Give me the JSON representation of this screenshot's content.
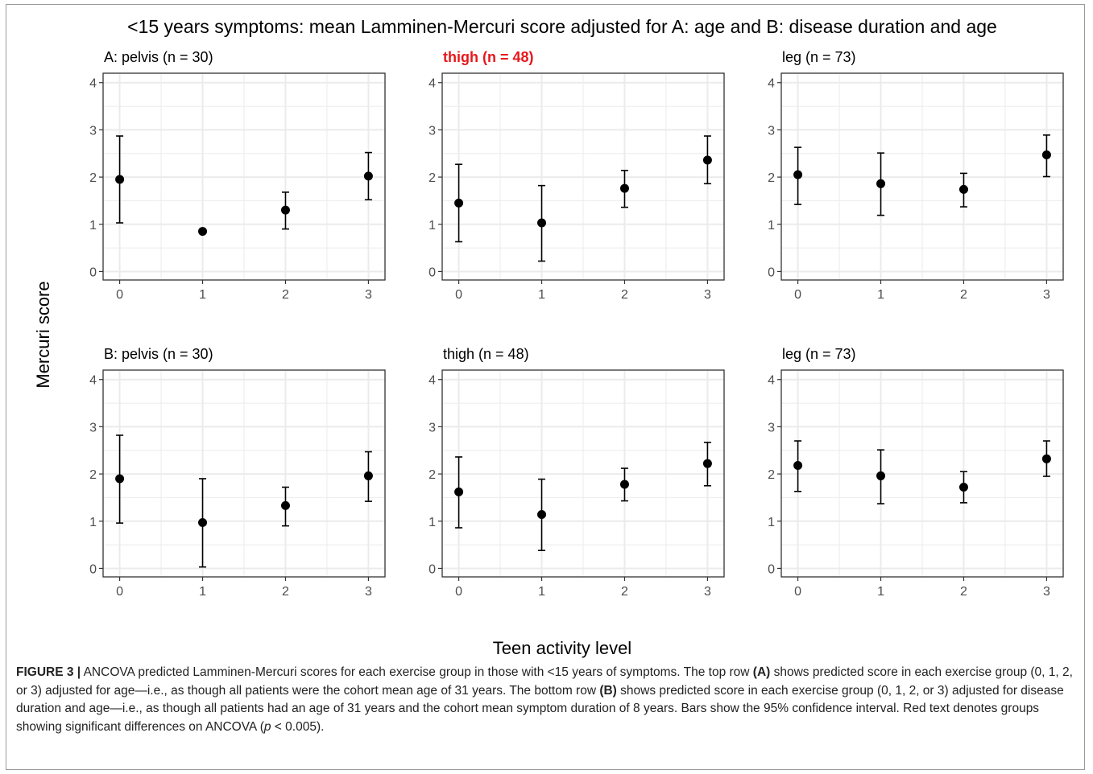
{
  "figure": {
    "title": "<15 years symptoms: mean Lamminen-Mercuri score adjusted for A: age and B: disease duration and age",
    "ylabel": "Mercuri score",
    "xlabel": "Teen activity level"
  },
  "caption": {
    "lead": "FIGURE 3 |",
    "part1": " ANCOVA predicted Lamminen-Mercuri scores for each exercise group in those with <15 years of symptoms. The top row ",
    "a": "(A)",
    "part2": " shows predicted score in each exercise group (0, 1, 2, or 3) adjusted for age—i.e., as though all patients were the cohort mean age of 31 years. The bottom row ",
    "b": "(B)",
    "part3": " shows predicted score in each exercise group (0, 1, 2, or 3) adjusted for disease duration and age—i.e., as though all patients had an age of 31 years and the cohort mean symptom duration of 8 years. Bars show the 95% confidence interval. Red text denotes groups showing significant differences on ANCOVA (",
    "p": "p",
    "part4": " < 0.005)."
  },
  "colors": {
    "significant": "#e8171b",
    "point": "#000000",
    "grid": "#ebebeb",
    "border": "#333333"
  },
  "chart_data": [
    {
      "type": "scatter",
      "title": "A: pelvis (n = 30)",
      "significant": false,
      "x": [
        0,
        1,
        2,
        3
      ],
      "y": [
        1.95,
        0.85,
        1.3,
        2.02
      ],
      "lower": [
        1.03,
        0.85,
        0.9,
        1.52
      ],
      "upper": [
        2.87,
        0.85,
        1.68,
        2.52
      ],
      "ylim": [
        0,
        4
      ],
      "yticks": [
        0,
        1,
        2,
        3,
        4
      ],
      "xticks": [
        "0",
        "1",
        "2",
        "3"
      ],
      "grid": true
    },
    {
      "type": "scatter",
      "title": "thigh (n = 48)",
      "significant": true,
      "x": [
        0,
        1,
        2,
        3
      ],
      "y": [
        1.45,
        1.03,
        1.76,
        2.36
      ],
      "lower": [
        0.63,
        0.22,
        1.36,
        1.86
      ],
      "upper": [
        2.27,
        1.82,
        2.14,
        2.87
      ],
      "ylim": [
        0,
        4
      ],
      "yticks": [
        0,
        1,
        2,
        3,
        4
      ],
      "xticks": [
        "0",
        "1",
        "2",
        "3"
      ],
      "grid": true
    },
    {
      "type": "scatter",
      "title": "leg (n = 73)",
      "significant": false,
      "x": [
        0,
        1,
        2,
        3
      ],
      "y": [
        2.05,
        1.86,
        1.74,
        2.47
      ],
      "lower": [
        1.42,
        1.19,
        1.37,
        2.01
      ],
      "upper": [
        2.63,
        2.51,
        2.08,
        2.89
      ],
      "ylim": [
        0,
        4
      ],
      "yticks": [
        0,
        1,
        2,
        3,
        4
      ],
      "xticks": [
        "0",
        "1",
        "2",
        "3"
      ],
      "grid": true
    },
    {
      "type": "scatter",
      "title": "B: pelvis (n = 30)",
      "significant": false,
      "x": [
        0,
        1,
        2,
        3
      ],
      "y": [
        1.9,
        0.97,
        1.33,
        1.96
      ],
      "lower": [
        0.96,
        0.03,
        0.9,
        1.42
      ],
      "upper": [
        2.82,
        1.9,
        1.72,
        2.47
      ],
      "ylim": [
        0,
        4
      ],
      "yticks": [
        0,
        1,
        2,
        3,
        4
      ],
      "xticks": [
        "0",
        "1",
        "2",
        "3"
      ],
      "grid": true
    },
    {
      "type": "scatter",
      "title": "thigh (n = 48)",
      "significant": false,
      "x": [
        0,
        1,
        2,
        3
      ],
      "y": [
        1.62,
        1.14,
        1.78,
        2.22
      ],
      "lower": [
        0.86,
        0.38,
        1.43,
        1.75
      ],
      "upper": [
        2.36,
        1.89,
        2.12,
        2.67
      ],
      "ylim": [
        0,
        4
      ],
      "yticks": [
        0,
        1,
        2,
        3,
        4
      ],
      "xticks": [
        "0",
        "1",
        "2",
        "3"
      ],
      "grid": true
    },
    {
      "type": "scatter",
      "title": "leg (n = 73)",
      "significant": false,
      "x": [
        0,
        1,
        2,
        3
      ],
      "y": [
        2.18,
        1.96,
        1.72,
        2.32
      ],
      "lower": [
        1.63,
        1.37,
        1.39,
        1.95
      ],
      "upper": [
        2.7,
        2.51,
        2.05,
        2.7
      ],
      "ylim": [
        0,
        4
      ],
      "yticks": [
        0,
        1,
        2,
        3,
        4
      ],
      "xticks": [
        "0",
        "1",
        "2",
        "3"
      ],
      "grid": true
    }
  ]
}
